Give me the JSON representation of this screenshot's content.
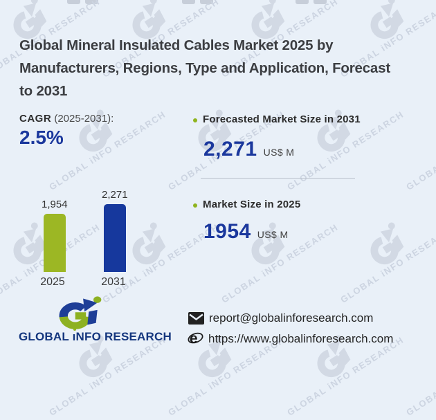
{
  "title": {
    "full": "Global Mineral Insulated Cables Market 2025 by Manufacturers, Regions, Type and Application, Forecast to 2031",
    "lines": [
      "Global Mineral Insulated Cables Market 2025 by",
      "Manufacturers, Regions, Type and Application, Forecast",
      "to 2031"
    ]
  },
  "cagr": {
    "label": "CAGR",
    "period": " (2025-2031):",
    "value": "2.5%"
  },
  "chart_data": {
    "type": "bar",
    "categories": [
      "2025",
      "2031"
    ],
    "values": [
      1954,
      2271
    ],
    "value_labels": [
      "1,954",
      "2,271"
    ],
    "bar_colors": [
      "#9cb724",
      "#16389d"
    ],
    "ylim": [
      0,
      2271
    ],
    "title": "",
    "xlabel": "",
    "ylabel": "US$ M",
    "grid": false,
    "legend": false
  },
  "stats": [
    {
      "label": "Forecasted Market Size in 2031",
      "value": "2,271",
      "unit": "US$ M"
    },
    {
      "label": "Market Size in 2025",
      "value": "1954",
      "unit": "US$ M"
    }
  ],
  "brand": {
    "logo_prefix": "GLOBAL ",
    "logo_i": "ı",
    "logo_suffix": "NFO RESEARCH"
  },
  "contact": {
    "email": "report@globalinforesearch.com",
    "website": "https://www.globalinforesearch.com"
  },
  "watermark": {
    "text": "GLOBAL iNFO RESEARCH"
  },
  "colors": {
    "background": "#e9f0f8",
    "accent_green": "#9cb724",
    "accent_navy": "#16389d",
    "number_navy": "#1b389d",
    "logo_navy": "#1e3e97",
    "logo_green": "#8db122",
    "watermark": "#d2d9e4"
  }
}
